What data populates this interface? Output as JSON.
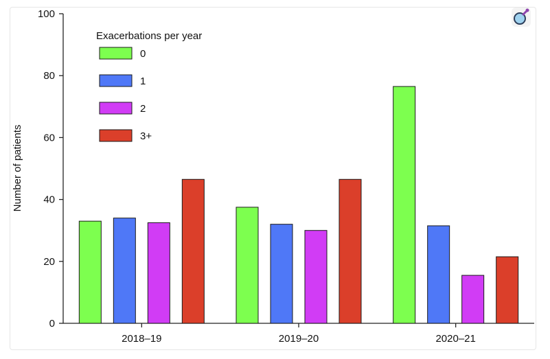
{
  "chart_data": {
    "type": "bar",
    "categories": [
      "2018–19",
      "2019–20",
      "2020–21"
    ],
    "legend_title": "Exacerbations per year",
    "legend_position": "top-left",
    "series": [
      {
        "name": "0",
        "color": "#7dff4f",
        "values": [
          33,
          37.5,
          76.5
        ]
      },
      {
        "name": "1",
        "color": "#4f78f7",
        "values": [
          34,
          32,
          31.5
        ]
      },
      {
        "name": "2",
        "color": "#d13cf5",
        "values": [
          32.5,
          30,
          15.5
        ]
      },
      {
        "name": "3+",
        "color": "#db3f2a",
        "values": [
          46.5,
          46.5,
          21.5
        ]
      }
    ],
    "title": "",
    "xlabel": "",
    "ylabel": "Number of patients",
    "ylim": [
      0,
      100
    ],
    "yticks": [
      0,
      20,
      40,
      60,
      80,
      100
    ],
    "grid": false
  },
  "toolbar": {
    "zoom_icon": "magnifier-icon"
  }
}
